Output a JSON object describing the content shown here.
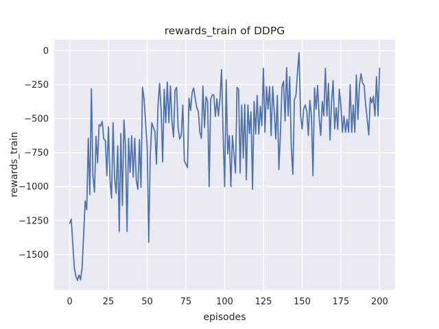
{
  "chart_data": {
    "type": "line",
    "title": "rewards_train of DDPG",
    "xlabel": "episodes",
    "ylabel": "rewards_train",
    "x_ticks": [
      0,
      25,
      50,
      75,
      100,
      125,
      150,
      175,
      200
    ],
    "x_tick_labels": [
      "0",
      "25",
      "50",
      "75",
      "100",
      "125",
      "150",
      "175",
      "200"
    ],
    "y_ticks": [
      0,
      -250,
      -500,
      -750,
      -1000,
      -1250,
      -1500
    ],
    "y_tick_labels": [
      "0",
      "−250",
      "−500",
      "−750",
      "−1000",
      "−1250",
      "−1500"
    ],
    "xlim": [
      -10,
      210
    ],
    "ylim": [
      -1760,
      80
    ],
    "grid": true,
    "legend": "none",
    "colors": {
      "line": "#4c72b0",
      "plot_background": "#eaeaf2",
      "grid": "#ffffff",
      "text": "#262626",
      "figure_background": "#ffffff"
    },
    "series": [
      {
        "name": "rewards_train",
        "x_start": 0,
        "x_step": 1,
        "values": [
          -1270,
          -1240,
          -1420,
          -1600,
          -1660,
          -1690,
          -1650,
          -1685,
          -1600,
          -1355,
          -1105,
          -1170,
          -645,
          -1060,
          -280,
          -920,
          -1040,
          -630,
          -825,
          -545,
          -555,
          -520,
          -650,
          -660,
          -920,
          -560,
          -950,
          -1085,
          -530,
          -940,
          -1050,
          -700,
          -1330,
          -610,
          -1140,
          -510,
          -705,
          -1330,
          -645,
          -895,
          -625,
          -930,
          -645,
          -955,
          -1020,
          -655,
          -1005,
          -270,
          -355,
          -530,
          -705,
          -1410,
          -775,
          -530,
          -565,
          -595,
          -835,
          -405,
          -240,
          -435,
          -820,
          -285,
          -530,
          -230,
          -530,
          -260,
          -520,
          -635,
          -290,
          -270,
          -570,
          -650,
          -620,
          -400,
          -810,
          -835,
          -860,
          -350,
          -440,
          -310,
          -275,
          -350,
          -420,
          -445,
          -600,
          -645,
          -260,
          -565,
          -340,
          -370,
          -1000,
          -360,
          -325,
          -325,
          -485,
          -355,
          -480,
          -350,
          -140,
          -610,
          -1000,
          -215,
          -760,
          -625,
          -1000,
          -625,
          -760,
          -900,
          -270,
          -285,
          -900,
          -400,
          -790,
          -395,
          -950,
          -400,
          -610,
          -450,
          -1020,
          -375,
          -612,
          -330,
          -615,
          -408,
          -552,
          -130,
          -600,
          -264,
          -430,
          -264,
          -624,
          -264,
          -450,
          -650,
          -330,
          -875,
          -614,
          -264,
          -225,
          -518,
          -125,
          -480,
          -192,
          -705,
          -910,
          -360,
          -330,
          -160,
          -15,
          -480,
          -576,
          -430,
          -400,
          -445,
          -624,
          -365,
          -480,
          -920,
          -273,
          -430,
          -256,
          -490,
          -624,
          -374,
          -480,
          -130,
          -480,
          -240,
          -657,
          -375,
          -220,
          -575,
          -420,
          -580,
          -283,
          -400,
          -600,
          -480,
          -600,
          -505,
          -600,
          -250,
          -600,
          -400,
          -600,
          -180,
          -505,
          -250,
          -170,
          -240,
          -255,
          -400,
          -505,
          -620,
          -345,
          -385,
          -336,
          -480,
          -192,
          -480,
          -130
        ]
      }
    ]
  }
}
